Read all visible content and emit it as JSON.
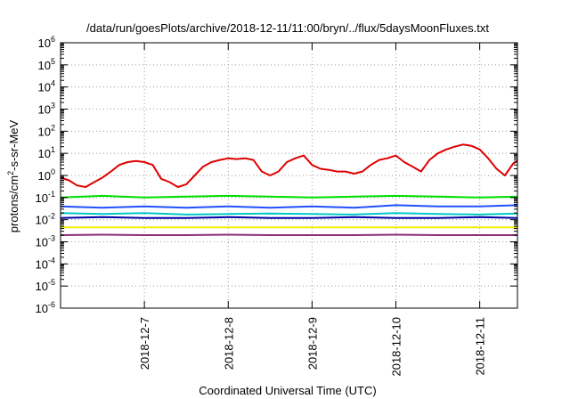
{
  "chart_data": {
    "type": "line",
    "title": "/data/run/goesPlots/archive/2018-12-11/11:00/bryn/../flux/5daysMoonFluxes.txt",
    "xlabel": "Coordinated Universal Time (UTC)",
    "ylabel": {
      "base": "protons/cm",
      "sup": "2",
      "rest": "-s-sr-MeV"
    },
    "y_scale": "log",
    "y_exponent_range": [
      -6,
      6
    ],
    "ytick_base": "10",
    "ytick_exponents": [
      "-6",
      "-5",
      "-4",
      "-3",
      "-2",
      "-1",
      "0",
      "1",
      "2",
      "3",
      "4",
      "5",
      "6"
    ],
    "x_range_days": [
      6.0,
      11.45
    ],
    "xticks": [
      {
        "value": 7,
        "label": "2018-12-7"
      },
      {
        "value": 8,
        "label": "2018-12-8"
      },
      {
        "value": 9,
        "label": "2018-12-9"
      },
      {
        "value": 10,
        "label": "2018-12-10"
      },
      {
        "value": 11,
        "label": "2018-12-11"
      }
    ],
    "grid": "dotted",
    "series": [
      {
        "color": "#e00000",
        "x": [
          6.0,
          6.1,
          6.2,
          6.3,
          6.4,
          6.5,
          6.6,
          6.7,
          6.8,
          6.9,
          7.0,
          7.1,
          7.2,
          7.3,
          7.4,
          7.5,
          7.6,
          7.7,
          7.8,
          7.9,
          8.0,
          8.1,
          8.2,
          8.3,
          8.4,
          8.5,
          8.6,
          8.7,
          8.8,
          8.9,
          9.0,
          9.1,
          9.2,
          9.3,
          9.4,
          9.5,
          9.6,
          9.7,
          9.8,
          9.9,
          10.0,
          10.1,
          10.2,
          10.3,
          10.4,
          10.5,
          10.6,
          10.7,
          10.8,
          10.9,
          11.0,
          11.1,
          11.2,
          11.3,
          11.4,
          11.45
        ],
        "y": [
          0.8,
          0.6,
          0.35,
          0.3,
          0.5,
          0.8,
          1.5,
          3,
          4,
          4.5,
          4,
          3,
          0.7,
          0.5,
          0.3,
          0.4,
          1,
          2.5,
          4,
          5,
          6,
          5.5,
          6,
          5,
          1.5,
          1,
          1.5,
          4,
          6,
          8,
          3,
          2,
          1.8,
          1.5,
          1.5,
          1.2,
          1.5,
          3,
          5,
          6,
          8,
          4,
          2.5,
          1.5,
          5,
          10,
          15,
          20,
          25,
          22,
          15,
          6,
          2,
          1,
          3.5,
          4.5
        ]
      },
      {
        "color": "#00e000",
        "x": [
          6.0,
          6.5,
          7.0,
          7.5,
          8.0,
          8.5,
          9.0,
          9.5,
          10.0,
          10.5,
          11.0,
          11.45
        ],
        "y": [
          0.1,
          0.12,
          0.1,
          0.11,
          0.12,
          0.11,
          0.1,
          0.11,
          0.12,
          0.11,
          0.1,
          0.11
        ]
      },
      {
        "color": "#00c8c8",
        "x": [
          6.0,
          6.5,
          7.0,
          7.5,
          8.0,
          8.5,
          9.0,
          9.5,
          10.0,
          10.5,
          11.0,
          11.45
        ],
        "y": [
          0.02,
          0.018,
          0.02,
          0.017,
          0.018,
          0.019,
          0.018,
          0.017,
          0.02,
          0.018,
          0.017,
          0.019
        ]
      },
      {
        "color": "#2050ff",
        "x": [
          6.0,
          6.5,
          7.0,
          7.5,
          8.0,
          8.5,
          9.0,
          9.5,
          10.0,
          10.5,
          11.0,
          11.45
        ],
        "y": [
          0.04,
          0.035,
          0.04,
          0.035,
          0.04,
          0.035,
          0.04,
          0.035,
          0.045,
          0.04,
          0.04,
          0.045
        ]
      },
      {
        "color": "#0000a0",
        "x": [
          6.0,
          6.5,
          7.0,
          7.5,
          8.0,
          8.5,
          9.0,
          9.5,
          10.0,
          10.5,
          11.0,
          11.45
        ],
        "y": [
          0.012,
          0.013,
          0.012,
          0.012,
          0.013,
          0.012,
          0.012,
          0.013,
          0.012,
          0.012,
          0.013,
          0.012
        ]
      },
      {
        "color": "#f0f000",
        "x": [
          6.0,
          6.5,
          7.0,
          7.5,
          8.0,
          8.5,
          9.0,
          9.5,
          10.0,
          10.5,
          11.0,
          11.45
        ],
        "y": [
          0.0045,
          0.0045,
          0.0045,
          0.0045,
          0.0045,
          0.0045,
          0.0045,
          0.0045,
          0.0045,
          0.0045,
          0.0045,
          0.0045
        ]
      },
      {
        "color": "#8a2d7a",
        "x": [
          6.0,
          6.5,
          7.0,
          7.5,
          8.0,
          8.5,
          9.0,
          9.5,
          10.0,
          10.5,
          11.0,
          11.45
        ],
        "y": [
          0.002,
          0.0021,
          0.002,
          0.002,
          0.0021,
          0.002,
          0.002,
          0.002,
          0.0021,
          0.002,
          0.002,
          0.002
        ]
      }
    ]
  }
}
